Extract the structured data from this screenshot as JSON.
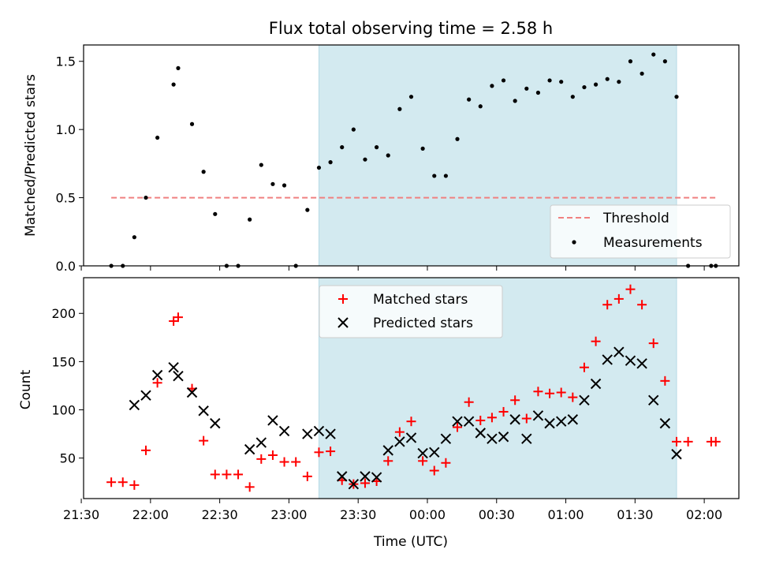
{
  "chart_data": [
    {
      "type": "scatter",
      "title": "Flux total observing time = 2.58 h",
      "ylabel": "Matched/Predicted stars",
      "xlabel": "",
      "x_unit": "time (UTC)",
      "xlim": [
        "21:31",
        "02:15"
      ],
      "ylim": [
        0,
        1.62
      ],
      "yticks": [
        0.0,
        0.5,
        1.0,
        1.5
      ],
      "ytick_labels": [
        "0.0",
        "0.5",
        "1.0",
        "1.5"
      ],
      "highlight_span": [
        "23:13",
        "01:48"
      ],
      "highlight_color": "#d3eaf0",
      "legend_position": "lower-right",
      "series": [
        {
          "name": "Threshold",
          "style": "dashed-line",
          "color": "#f08080",
          "points": [
            [
              "21:43",
              0.5
            ],
            [
              "02:06",
              0.5
            ]
          ]
        },
        {
          "name": "Measurements",
          "style": "dot",
          "color": "#000000",
          "points": [
            [
              "21:43",
              0.0
            ],
            [
              "21:48",
              0.0
            ],
            [
              "21:53",
              0.21
            ],
            [
              "21:58",
              0.5
            ],
            [
              "22:03",
              0.94
            ],
            [
              "22:10",
              1.33
            ],
            [
              "22:12",
              1.45
            ],
            [
              "22:18",
              1.04
            ],
            [
              "22:23",
              0.69
            ],
            [
              "22:28",
              0.38
            ],
            [
              "22:33",
              0.0
            ],
            [
              "22:38",
              0.0
            ],
            [
              "22:43",
              0.34
            ],
            [
              "22:48",
              0.74
            ],
            [
              "22:53",
              0.6
            ],
            [
              "22:58",
              0.59
            ],
            [
              "23:03",
              0.0
            ],
            [
              "23:08",
              0.41
            ],
            [
              "23:13",
              0.72
            ],
            [
              "23:18",
              0.76
            ],
            [
              "23:23",
              0.87
            ],
            [
              "23:28",
              1.0
            ],
            [
              "23:33",
              0.78
            ],
            [
              "23:38",
              0.87
            ],
            [
              "23:43",
              0.81
            ],
            [
              "23:48",
              1.15
            ],
            [
              "23:53",
              1.24
            ],
            [
              "23:58",
              0.86
            ],
            [
              "00:03",
              0.66
            ],
            [
              "00:08",
              0.66
            ],
            [
              "00:13",
              0.93
            ],
            [
              "00:18",
              1.22
            ],
            [
              "00:23",
              1.17
            ],
            [
              "00:28",
              1.32
            ],
            [
              "00:33",
              1.36
            ],
            [
              "00:38",
              1.21
            ],
            [
              "00:43",
              1.3
            ],
            [
              "00:48",
              1.27
            ],
            [
              "00:53",
              1.36
            ],
            [
              "00:58",
              1.35
            ],
            [
              "01:03",
              1.24
            ],
            [
              "01:08",
              1.31
            ],
            [
              "01:13",
              1.33
            ],
            [
              "01:18",
              1.37
            ],
            [
              "01:23",
              1.35
            ],
            [
              "01:28",
              1.5
            ],
            [
              "01:33",
              1.41
            ],
            [
              "01:38",
              1.55
            ],
            [
              "01:43",
              1.5
            ],
            [
              "01:48",
              1.24
            ],
            [
              "01:53",
              0.0
            ],
            [
              "02:03",
              0.0
            ],
            [
              "02:05",
              0.0
            ]
          ]
        }
      ]
    },
    {
      "type": "scatter",
      "title": "",
      "ylabel": "Count",
      "xlabel": "Time (UTC)",
      "x_unit": "time (UTC)",
      "xlim": [
        "21:31",
        "02:15"
      ],
      "ylim": [
        8,
        237
      ],
      "yticks": [
        50,
        100,
        150,
        200
      ],
      "ytick_labels": [
        "50",
        "100",
        "150",
        "200"
      ],
      "xticks": [
        "21:30",
        "22:00",
        "22:30",
        "23:00",
        "23:30",
        "00:00",
        "00:30",
        "01:00",
        "01:30",
        "02:00"
      ],
      "highlight_span": [
        "23:13",
        "01:48"
      ],
      "highlight_color": "#d3eaf0",
      "legend_position": "upper-center",
      "series": [
        {
          "name": "Matched stars",
          "style": "plus",
          "color": "#ff0000",
          "points": [
            [
              "21:43",
              25
            ],
            [
              "21:48",
              25
            ],
            [
              "21:53",
              22
            ],
            [
              "21:58",
              58
            ],
            [
              "22:03",
              128
            ],
            [
              "22:10",
              192
            ],
            [
              "22:12",
              196
            ],
            [
              "22:18",
              122
            ],
            [
              "22:23",
              68
            ],
            [
              "22:28",
              33
            ],
            [
              "22:33",
              33
            ],
            [
              "22:38",
              33
            ],
            [
              "22:43",
              20
            ],
            [
              "22:48",
              49
            ],
            [
              "22:53",
              53
            ],
            [
              "22:58",
              46
            ],
            [
              "23:03",
              46
            ],
            [
              "23:08",
              31
            ],
            [
              "23:13",
              56
            ],
            [
              "23:18",
              57
            ],
            [
              "23:23",
              27
            ],
            [
              "23:28",
              23
            ],
            [
              "23:33",
              24
            ],
            [
              "23:38",
              26
            ],
            [
              "23:43",
              47
            ],
            [
              "23:48",
              77
            ],
            [
              "23:53",
              88
            ],
            [
              "23:58",
              47
            ],
            [
              "00:03",
              37
            ],
            [
              "00:08",
              45
            ],
            [
              "00:13",
              82
            ],
            [
              "00:18",
              108
            ],
            [
              "00:23",
              89
            ],
            [
              "00:28",
              92
            ],
            [
              "00:33",
              98
            ],
            [
              "00:38",
              110
            ],
            [
              "00:43",
              91
            ],
            [
              "00:48",
              119
            ],
            [
              "00:53",
              117
            ],
            [
              "00:58",
              118
            ],
            [
              "01:03",
              113
            ],
            [
              "01:08",
              144
            ],
            [
              "01:13",
              171
            ],
            [
              "01:18",
              209
            ],
            [
              "01:23",
              215
            ],
            [
              "01:28",
              225
            ],
            [
              "01:33",
              209
            ],
            [
              "01:38",
              169
            ],
            [
              "01:43",
              130
            ],
            [
              "01:48",
              67
            ],
            [
              "01:53",
              67
            ],
            [
              "02:03",
              67
            ],
            [
              "02:05",
              67
            ]
          ]
        },
        {
          "name": "Predicted stars",
          "style": "x",
          "color": "#000000",
          "points": [
            [
              "21:53",
              105
            ],
            [
              "21:58",
              115
            ],
            [
              "22:03",
              136
            ],
            [
              "22:10",
              144
            ],
            [
              "22:12",
              135
            ],
            [
              "22:18",
              118
            ],
            [
              "22:23",
              99
            ],
            [
              "22:28",
              86
            ],
            [
              "22:43",
              59
            ],
            [
              "22:48",
              66
            ],
            [
              "22:53",
              89
            ],
            [
              "22:58",
              78
            ],
            [
              "23:08",
              75
            ],
            [
              "23:13",
              78
            ],
            [
              "23:18",
              75
            ],
            [
              "23:23",
              31
            ],
            [
              "23:28",
              23
            ],
            [
              "23:33",
              31
            ],
            [
              "23:38",
              30
            ],
            [
              "23:43",
              58
            ],
            [
              "23:48",
              67
            ],
            [
              "23:53",
              71
            ],
            [
              "23:58",
              55
            ],
            [
              "00:03",
              56
            ],
            [
              "00:08",
              70
            ],
            [
              "00:13",
              88
            ],
            [
              "00:18",
              88
            ],
            [
              "00:23",
              76
            ],
            [
              "00:28",
              70
            ],
            [
              "00:33",
              72
            ],
            [
              "00:38",
              90
            ],
            [
              "00:43",
              70
            ],
            [
              "00:48",
              94
            ],
            [
              "00:53",
              86
            ],
            [
              "00:58",
              88
            ],
            [
              "01:03",
              90
            ],
            [
              "01:08",
              110
            ],
            [
              "01:13",
              127
            ],
            [
              "01:18",
              152
            ],
            [
              "01:23",
              160
            ],
            [
              "01:28",
              151
            ],
            [
              "01:33",
              148
            ],
            [
              "01:38",
              110
            ],
            [
              "01:43",
              86
            ],
            [
              "01:48",
              54
            ]
          ]
        }
      ]
    }
  ]
}
